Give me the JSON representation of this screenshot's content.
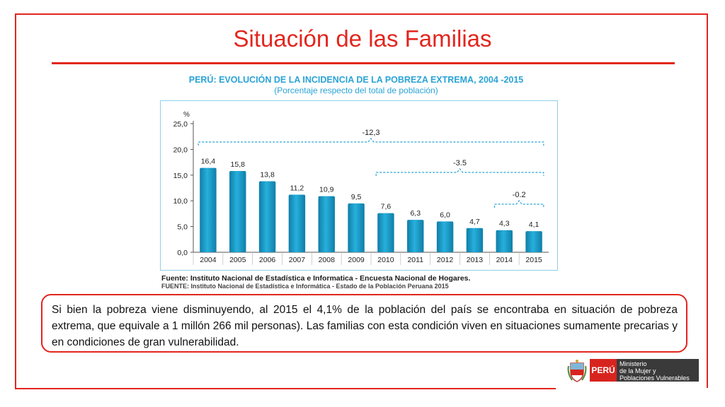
{
  "slide": {
    "title": "Situación de las Familias"
  },
  "chart_data": {
    "type": "bar",
    "title": "PERÚ: EVOLUCIÓN DE LA INCIDENCIA DE LA POBREZA EXTREMA,  2004 -2015",
    "subtitle": "(Porcentaje respecto del total de población)",
    "ylabel": "%",
    "ylim": [
      0,
      25
    ],
    "yticks": [
      "0,0",
      "5,0",
      "10,0",
      "15,0",
      "20,0",
      "25,0"
    ],
    "categories": [
      "2004",
      "2005",
      "2006",
      "2007",
      "2008",
      "2009",
      "2010",
      "2011",
      "2012",
      "2013",
      "2014",
      "2015"
    ],
    "values": [
      16.4,
      15.8,
      13.8,
      11.2,
      10.9,
      9.5,
      7.6,
      6.3,
      6.0,
      4.7,
      4.3,
      4.1
    ],
    "value_labels": [
      "16,4",
      "15,8",
      "13,8",
      "11,2",
      "10,9",
      "9,5",
      "7,6",
      "6,3",
      "6,0",
      "4,7",
      "4,3",
      "4,1"
    ],
    "bar_color": "#1a9ac4",
    "annotations": [
      {
        "label": "-12,3",
        "from": "2004",
        "to": "2015"
      },
      {
        "label": "-3.5",
        "from": "2010",
        "to": "2015"
      },
      {
        "label": "-0.2",
        "from": "2014",
        "to": "2015"
      }
    ],
    "grid": false
  },
  "sources": {
    "line1": "Fuente: Instituto Nacional de Estadística e Informatica - Encuesta Nacional de Hogares.",
    "line2": "FUENTE: Instituto Nacional de Estadística e Informática - Estado de la Población Peruana 2015"
  },
  "note": {
    "text": "Si bien la pobreza viene disminuyendo, al 2015 el 4,1% de la población del país se encontraba en situación de pobreza extrema, que equivale a 1 millón 266 mil personas). Las familias con esta condición viven en situaciones sumamente precarias y en condiciones de gran vulnerabilidad."
  },
  "logo": {
    "country": "PERÚ",
    "ministry_line1": "Ministerio",
    "ministry_line2": "de la Mujer y",
    "ministry_line3": "Poblaciones Vulnerables"
  },
  "colors": {
    "accent_red": "#e2261f",
    "chart_blue": "#2aa3d6"
  }
}
